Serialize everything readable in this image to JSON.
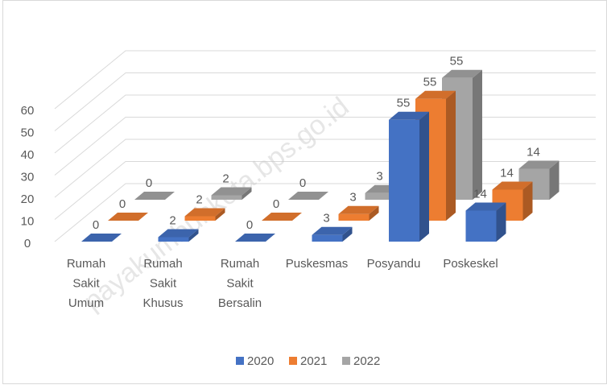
{
  "chart_data": {
    "type": "bar3d",
    "categories": [
      "Rumah Sakit Umum",
      "Rumah Sakit Khusus",
      "Rumah Sakit Bersalin",
      "Puskesmas",
      "Posyandu",
      "Poskeskel"
    ],
    "series": [
      {
        "name": "2020",
        "color": "#4472c4",
        "values": [
          0,
          2,
          0,
          3,
          55,
          14
        ]
      },
      {
        "name": "2021",
        "color": "#ed7d31",
        "values": [
          0,
          2,
          0,
          3,
          55,
          14
        ]
      },
      {
        "name": "2022",
        "color": "#a5a5a5",
        "values": [
          0,
          2,
          0,
          3,
          55,
          14
        ]
      }
    ],
    "ylim": [
      0,
      60
    ],
    "yticks": [
      0,
      10,
      20,
      30,
      40,
      50,
      60
    ],
    "grid": true,
    "legend": "bottom",
    "watermark": "payakumbuhkota.bps.go.id"
  }
}
